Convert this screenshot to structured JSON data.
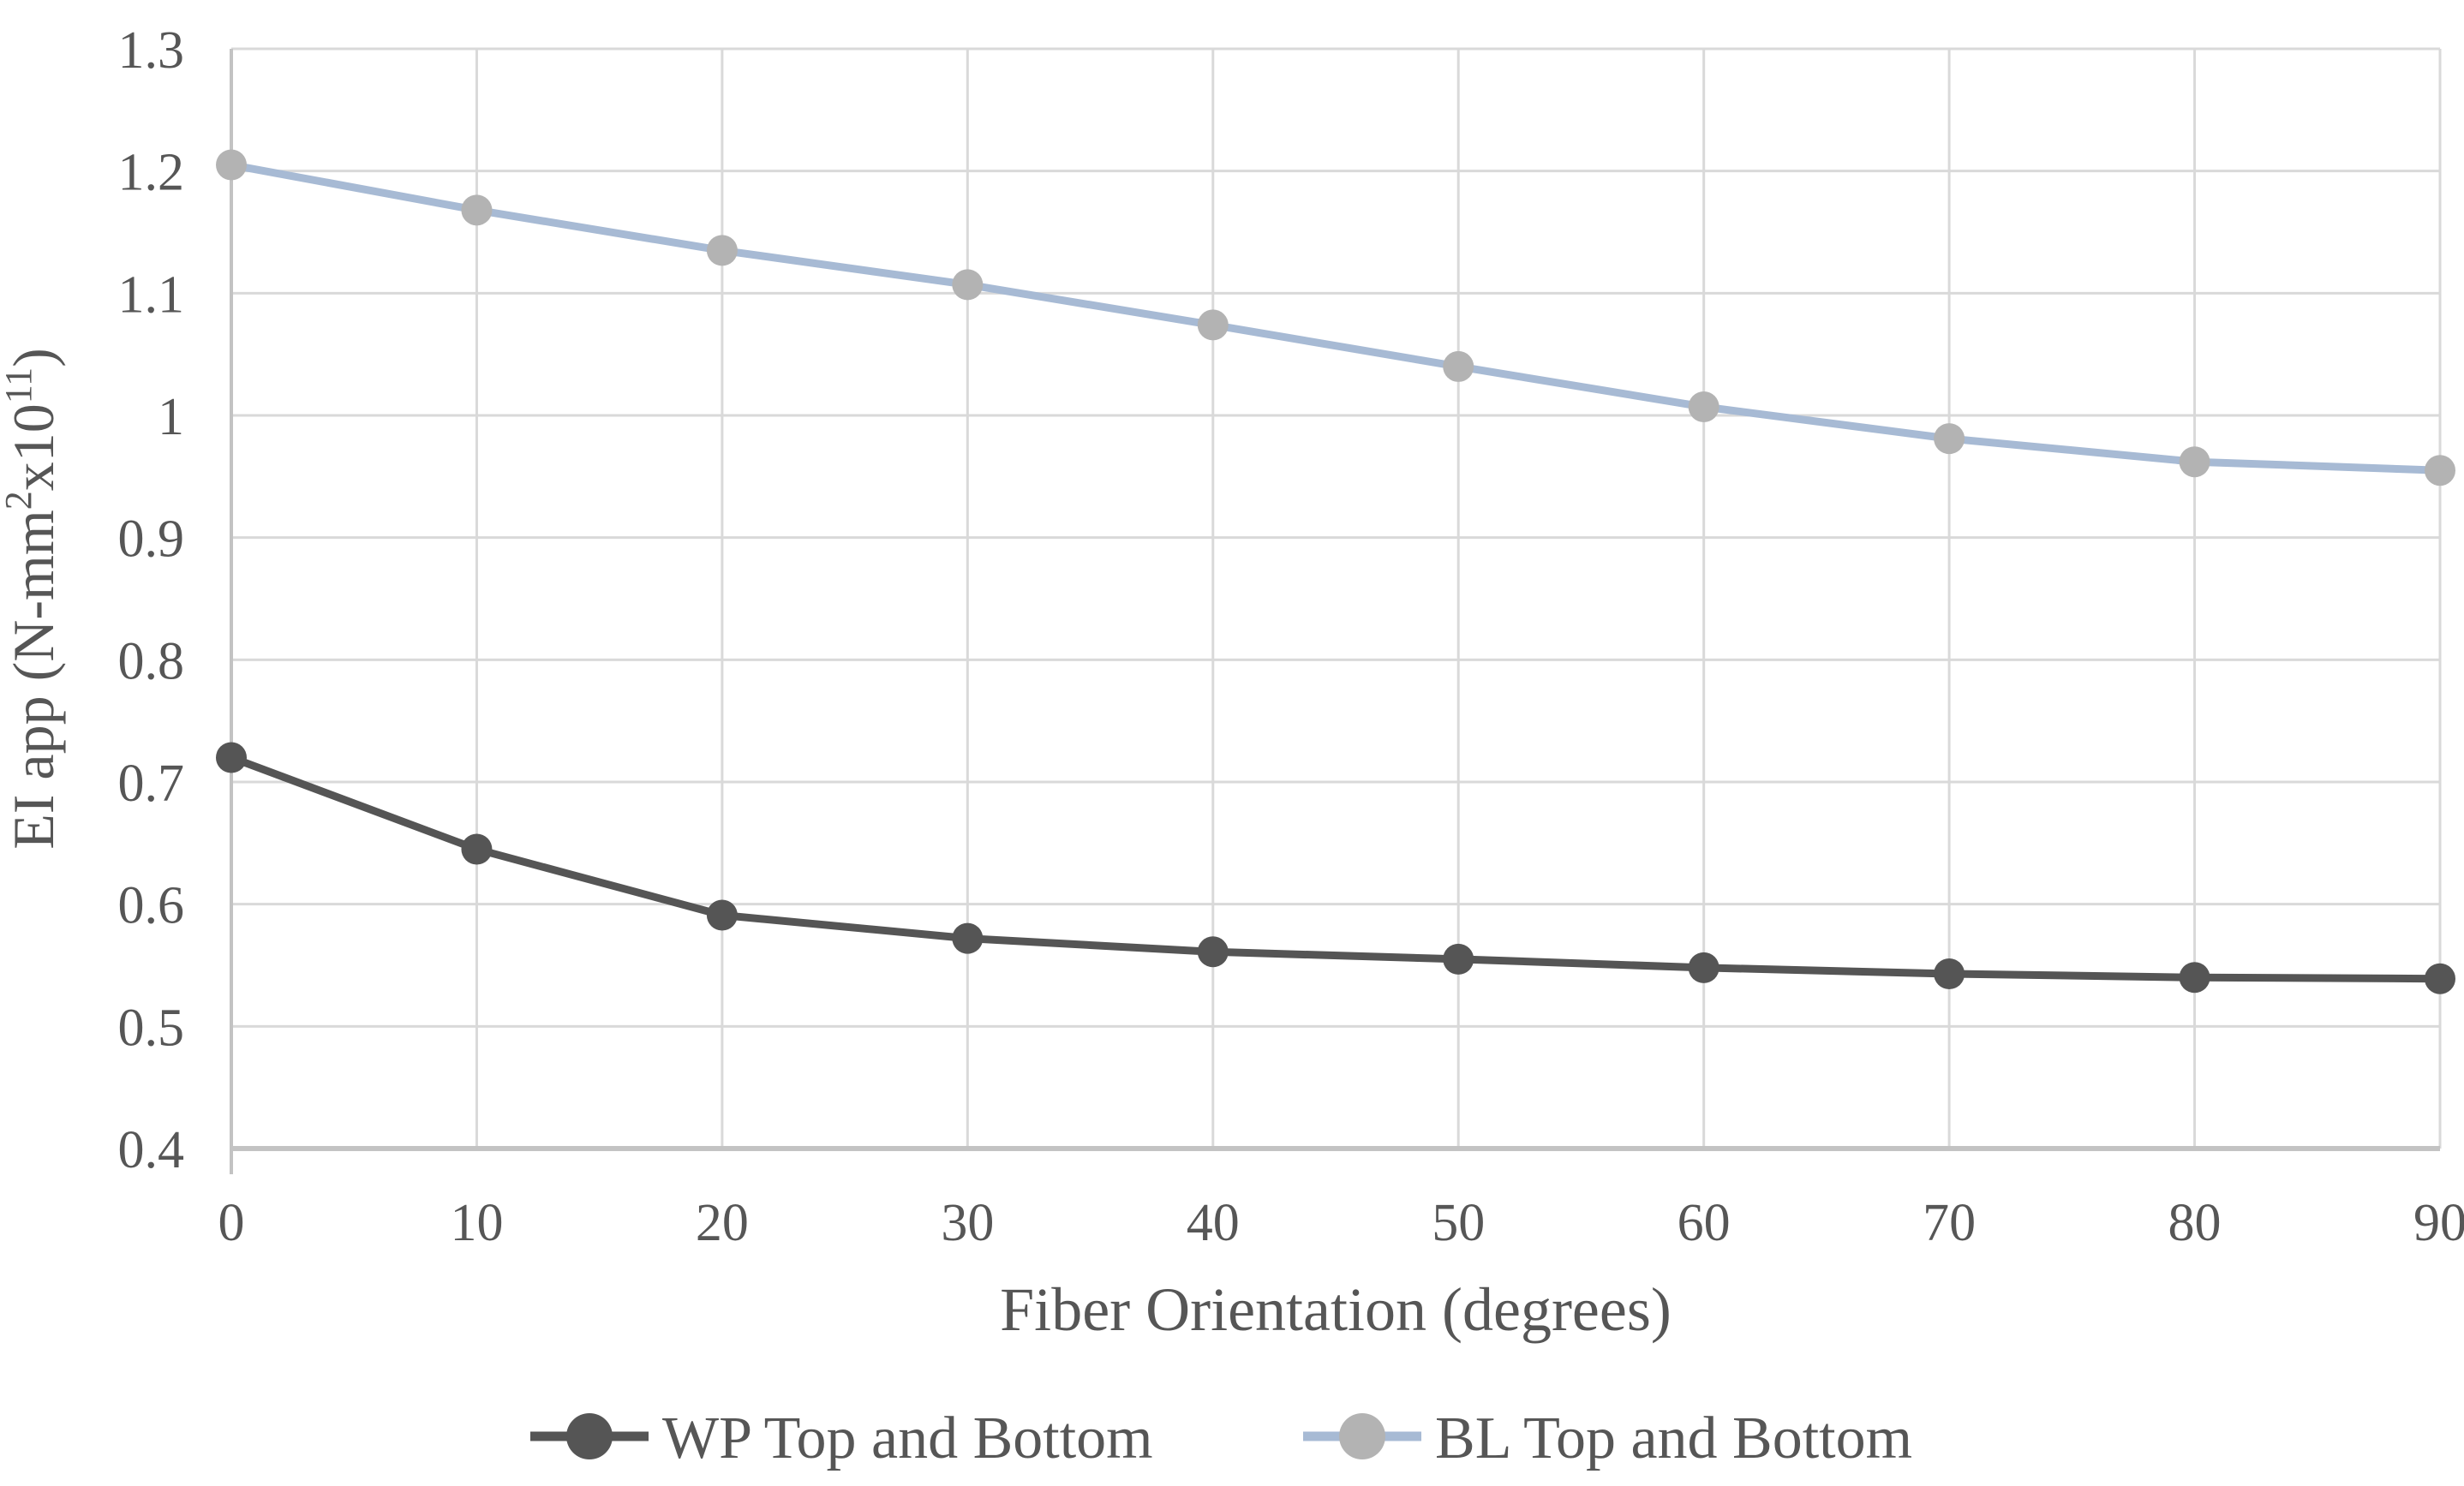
{
  "chart_data": {
    "type": "line",
    "xlabel": "Fiber Orientation (degrees)",
    "ylabel": "EI app (N-mm²x10¹¹)",
    "ylabel_parts": [
      {
        "text": "EI app (N-mm",
        "sup": false
      },
      {
        "text": "2",
        "sup": true
      },
      {
        "text": "x10",
        "sup": false
      },
      {
        "text": "11",
        "sup": true
      },
      {
        "text": ")",
        "sup": false
      }
    ],
    "x": [
      0,
      10,
      20,
      30,
      40,
      50,
      60,
      70,
      80,
      90
    ],
    "x_tick_labels": [
      "0",
      "10",
      "20",
      "30",
      "40",
      "50",
      "60",
      "70",
      "80",
      "90"
    ],
    "y_tick_labels": [
      "1.3",
      "1.2",
      "1.1",
      "1",
      "0.9",
      "0.8",
      "0.7",
      "0.6",
      "0.5",
      "0.4"
    ],
    "xlim": [
      0,
      90
    ],
    "ylim": [
      0.4,
      1.3
    ],
    "grid": true,
    "legend_position": "bottom",
    "marker": "circle",
    "series": [
      {
        "name": "WP Top and Bottom",
        "color": "#555555",
        "marker_color": "#555555",
        "values": [
          0.72,
          0.645,
          0.591,
          0.572,
          0.561,
          0.555,
          0.548,
          0.543,
          0.54,
          0.539
        ]
      },
      {
        "name": "BL Top and Bottom",
        "color": "#a7bad4",
        "marker_color": "#b3b3b3",
        "values": [
          1.205,
          1.168,
          1.135,
          1.107,
          1.074,
          1.04,
          1.007,
          0.981,
          0.962,
          0.955
        ]
      }
    ],
    "colors": {
      "grid": "#d9d9d9",
      "axis": "#c3c3c3",
      "text": "#565656",
      "background": "#ffffff"
    }
  }
}
